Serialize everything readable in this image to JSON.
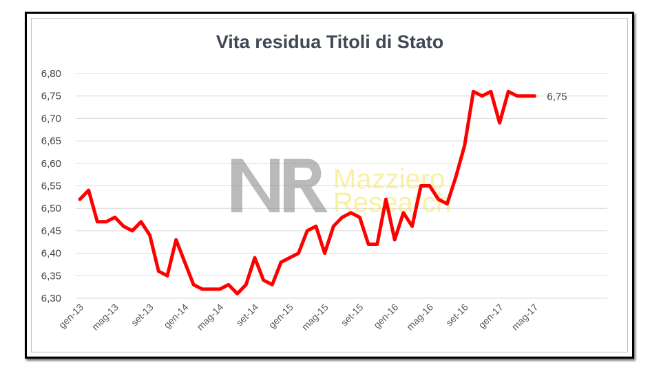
{
  "colors": {
    "line": "#ff0000",
    "grid": "#d9d9d9",
    "title": "#404855",
    "watermark_text": "#f3e35a",
    "watermark_logo": "#8c8c8c"
  },
  "watermark": {
    "logo": "MR",
    "line1": "Mazziero",
    "line2": "Research"
  },
  "chart_data": {
    "type": "line",
    "title": "Vita residua Titoli di Stato",
    "xlabel": "",
    "ylabel": "",
    "ylim": [
      6.3,
      6.8
    ],
    "yticks": [
      "6,30",
      "6,35",
      "6,40",
      "6,45",
      "6,50",
      "6,55",
      "6,60",
      "6,65",
      "6,70",
      "6,75",
      "6,80"
    ],
    "ytick_values": [
      6.3,
      6.35,
      6.4,
      6.45,
      6.5,
      6.55,
      6.6,
      6.65,
      6.7,
      6.75,
      6.8
    ],
    "xtick_labels": [
      "gen-13",
      "mag-13",
      "set-13",
      "gen-14",
      "mag-14",
      "set-14",
      "gen-15",
      "mag-15",
      "set-15",
      "gen-16",
      "mag-16",
      "set-16",
      "gen-17",
      "mag-17"
    ],
    "grid": true,
    "legend": "none",
    "last_value_label": "6,75",
    "series": [
      {
        "x": [
          "gen-13",
          "feb-13",
          "mar-13",
          "apr-13",
          "mag-13",
          "giu-13",
          "lug-13",
          "ago-13",
          "set-13",
          "ott-13",
          "nov-13",
          "dic-13",
          "gen-14",
          "feb-14",
          "mar-14",
          "apr-14",
          "mag-14",
          "giu-14",
          "lug-14",
          "ago-14",
          "set-14",
          "ott-14",
          "nov-14",
          "dic-14",
          "gen-15",
          "feb-15",
          "mar-15",
          "apr-15",
          "mag-15",
          "giu-15",
          "lug-15",
          "ago-15",
          "set-15",
          "ott-15",
          "nov-15",
          "dic-15",
          "gen-16",
          "feb-16",
          "mar-16",
          "apr-16",
          "mag-16",
          "giu-16",
          "lug-16",
          "ago-16",
          "set-16",
          "ott-16",
          "nov-16",
          "dic-16",
          "gen-17",
          "feb-17",
          "mar-17",
          "apr-17",
          "mag-17"
        ],
        "values": [
          6.52,
          6.54,
          6.47,
          6.47,
          6.48,
          6.46,
          6.45,
          6.47,
          6.44,
          6.36,
          6.35,
          6.43,
          6.38,
          6.33,
          6.32,
          6.32,
          6.32,
          6.33,
          6.31,
          6.33,
          6.39,
          6.34,
          6.33,
          6.38,
          6.39,
          6.4,
          6.45,
          6.46,
          6.4,
          6.46,
          6.48,
          6.49,
          6.48,
          6.42,
          6.42,
          6.52,
          6.43,
          6.49,
          6.46,
          6.55,
          6.55,
          6.52,
          6.51,
          6.57,
          6.64,
          6.76,
          6.75,
          6.76,
          6.69,
          6.76,
          6.75,
          6.75,
          6.75
        ]
      }
    ]
  }
}
